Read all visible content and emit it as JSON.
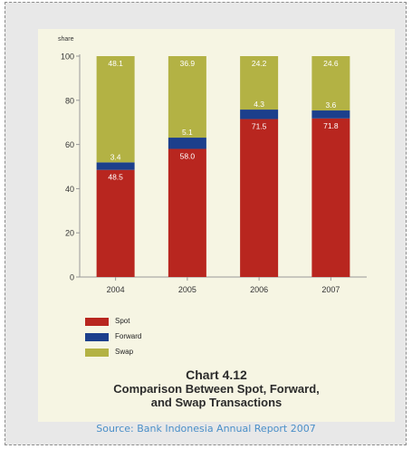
{
  "chart_data": {
    "type": "bar",
    "stacked": true,
    "categories": [
      "2004",
      "2005",
      "2006",
      "2007"
    ],
    "series": [
      {
        "name": "Spot",
        "values": [
          48.5,
          58.0,
          71.5,
          71.8
        ],
        "color": "#b8261f",
        "labels": [
          "48.5",
          "58.0",
          "71.5",
          "71.8"
        ]
      },
      {
        "name": "Forward",
        "values": [
          3.4,
          5.1,
          4.3,
          3.6
        ],
        "color": "#1c3f8c",
        "labels": [
          "3.4",
          "5.1",
          "4.3",
          "3.6"
        ]
      },
      {
        "name": "Swap",
        "values": [
          48.1,
          36.9,
          24.2,
          24.6
        ],
        "color": "#b3b244",
        "labels": [
          "48.1",
          "36.9",
          "24.2",
          "24.6"
        ]
      }
    ],
    "ylabel": "share",
    "ylim": [
      0,
      100
    ],
    "yticks": [
      "0",
      "20",
      "40",
      "60",
      "80",
      "100"
    ],
    "grid": false,
    "legend_position": "bottom-left",
    "caption_number": "Chart 4.12",
    "caption_line1": "Comparison Between Spot, Forward,",
    "caption_line2": "and Swap Transactions"
  },
  "source_text": "Source: Bank Indonesia Annual Report 2007"
}
